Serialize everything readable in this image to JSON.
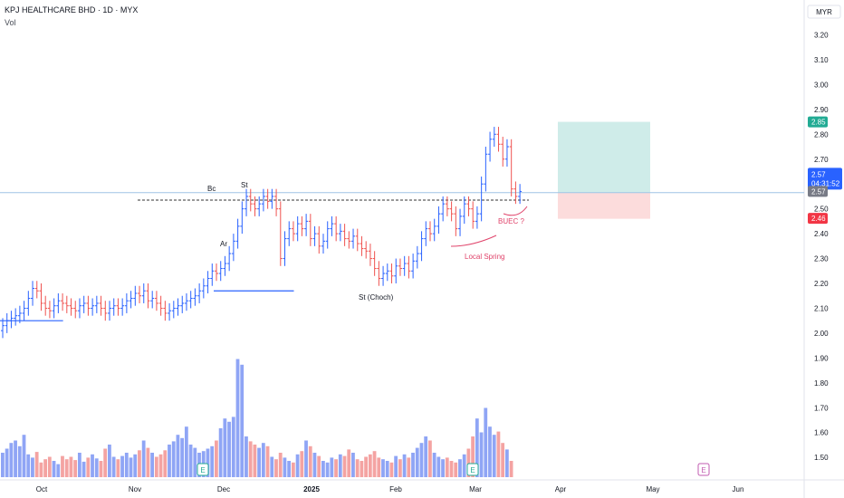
{
  "header": {
    "symbol": "KPJ HEALTHCARE BHD · 1D · MYX",
    "volume_label": "Vol"
  },
  "colors": {
    "up": "#2962ff",
    "down": "#ef5350",
    "vol_up": "#8fa5f5",
    "vol_down": "#f4a3a2",
    "target_zone": "#cfece9",
    "stop_zone": "#fcdcdc",
    "annotation": "#e0446b",
    "grid_axis": "#e0e3eb",
    "badge_last": "#2962ff",
    "badge_target": "#22ab94",
    "badge_stop": "#f23645",
    "badge_entry": "#787b86"
  },
  "chart_data": {
    "type": "ohlc",
    "currency": "MYR",
    "y_ticks": [
      "3.20",
      "3.10",
      "3.00",
      "2.90",
      "2.80",
      "2.70",
      "2.60",
      "2.50",
      "2.40",
      "2.30",
      "2.20",
      "2.10",
      "2.00",
      "1.90",
      "1.80",
      "1.70",
      "1.60",
      "1.50"
    ],
    "ylim": [
      1.44,
      3.26
    ],
    "x_ticks": [
      "Oct",
      "Nov",
      "Dec",
      "2025",
      "Feb",
      "Mar",
      "Apr",
      "May",
      "Jun"
    ],
    "x_tick_dates": [
      "2024-10-01",
      "2024-11-01",
      "2024-12-01",
      "2025-01-01",
      "2025-02-01",
      "2025-03-01",
      "2025-04-01",
      "2025-05-01",
      "2025-06-01"
    ],
    "x_range": [
      "2024-09-18",
      "2025-06-26"
    ],
    "price_badges": {
      "target": "2.85",
      "last": "2.57",
      "countdown": "04:31:52",
      "entry": "2.57",
      "stop": "2.46"
    },
    "closes": [
      2.03,
      2.05,
      2.06,
      2.07,
      2.08,
      2.1,
      2.14,
      2.18,
      2.17,
      2.12,
      2.1,
      2.09,
      2.11,
      2.13,
      2.12,
      2.11,
      2.1,
      2.09,
      2.11,
      2.12,
      2.1,
      2.11,
      2.12,
      2.1,
      2.08,
      2.1,
      2.11,
      2.1,
      2.11,
      2.13,
      2.14,
      2.16,
      2.15,
      2.17,
      2.13,
      2.14,
      2.12,
      2.1,
      2.08,
      2.09,
      2.1,
      2.11,
      2.12,
      2.13,
      2.14,
      2.15,
      2.17,
      2.19,
      2.22,
      2.25,
      2.24,
      2.26,
      2.28,
      2.32,
      2.37,
      2.43,
      2.5,
      2.55,
      2.52,
      2.5,
      2.52,
      2.55,
      2.53,
      2.55,
      2.5,
      2.3,
      2.38,
      2.42,
      2.4,
      2.44,
      2.42,
      2.45,
      2.38,
      2.4,
      2.35,
      2.37,
      2.42,
      2.44,
      2.4,
      2.41,
      2.38,
      2.37,
      2.39,
      2.36,
      2.34,
      2.33,
      2.3,
      2.26,
      2.22,
      2.24,
      2.25,
      2.23,
      2.27,
      2.26,
      2.28,
      2.25,
      2.29,
      2.32,
      2.38,
      2.42,
      2.4,
      2.43,
      2.48,
      2.52,
      2.5,
      2.48,
      2.42,
      2.47,
      2.52,
      2.5,
      2.45,
      2.48,
      2.6,
      2.72,
      2.78,
      2.8,
      2.76,
      2.7,
      2.75,
      2.58,
      2.55,
      2.57
    ],
    "volumes": [
      0.3,
      0.35,
      0.42,
      0.45,
      0.38,
      0.52,
      0.28,
      0.24,
      0.31,
      0.18,
      0.22,
      0.25,
      0.2,
      0.16,
      0.26,
      0.22,
      0.25,
      0.21,
      0.3,
      0.19,
      0.24,
      0.28,
      0.23,
      0.2,
      0.35,
      0.4,
      0.25,
      0.22,
      0.26,
      0.3,
      0.24,
      0.28,
      0.33,
      0.45,
      0.36,
      0.3,
      0.25,
      0.28,
      0.33,
      0.4,
      0.44,
      0.52,
      0.48,
      0.62,
      0.4,
      0.36,
      0.3,
      0.32,
      0.35,
      0.38,
      0.45,
      0.6,
      0.72,
      0.68,
      0.74,
      1.45,
      1.38,
      0.5,
      0.44,
      0.4,
      0.36,
      0.42,
      0.38,
      0.25,
      0.22,
      0.3,
      0.24,
      0.2,
      0.18,
      0.28,
      0.32,
      0.45,
      0.38,
      0.3,
      0.26,
      0.2,
      0.18,
      0.24,
      0.22,
      0.28,
      0.26,
      0.34,
      0.3,
      0.22,
      0.2,
      0.25,
      0.28,
      0.32,
      0.24,
      0.22,
      0.2,
      0.18,
      0.26,
      0.22,
      0.28,
      0.24,
      0.3,
      0.36,
      0.42,
      0.5,
      0.45,
      0.3,
      0.25,
      0.22,
      0.24,
      0.2,
      0.18,
      0.22,
      0.28,
      0.35,
      0.5,
      0.72,
      0.55,
      0.85,
      0.62,
      0.52,
      0.56,
      0.42,
      0.34,
      0.2
    ],
    "levels": {
      "resistance_dashed": 2.535,
      "horizontal_line": 2.565,
      "segments": [
        {
          "price": 2.05,
          "from": 0,
          "to": 12
        },
        {
          "price": 2.17,
          "from": 50,
          "to": 66
        }
      ]
    },
    "position": {
      "entry": 2.565,
      "target": 2.85,
      "stop": 2.46
    },
    "annotations": [
      {
        "text": "Bc",
        "color": "#131722"
      },
      {
        "text": "St",
        "color": "#131722"
      },
      {
        "text": "Ar",
        "color": "#131722"
      },
      {
        "text": "St (Choch)",
        "color": "#131722"
      },
      {
        "text": "Local Spring",
        "color": "#e0446b"
      },
      {
        "text": "BUEC ?",
        "color": "#e0446b"
      }
    ],
    "event_markers": [
      "E",
      "E",
      "E"
    ]
  }
}
